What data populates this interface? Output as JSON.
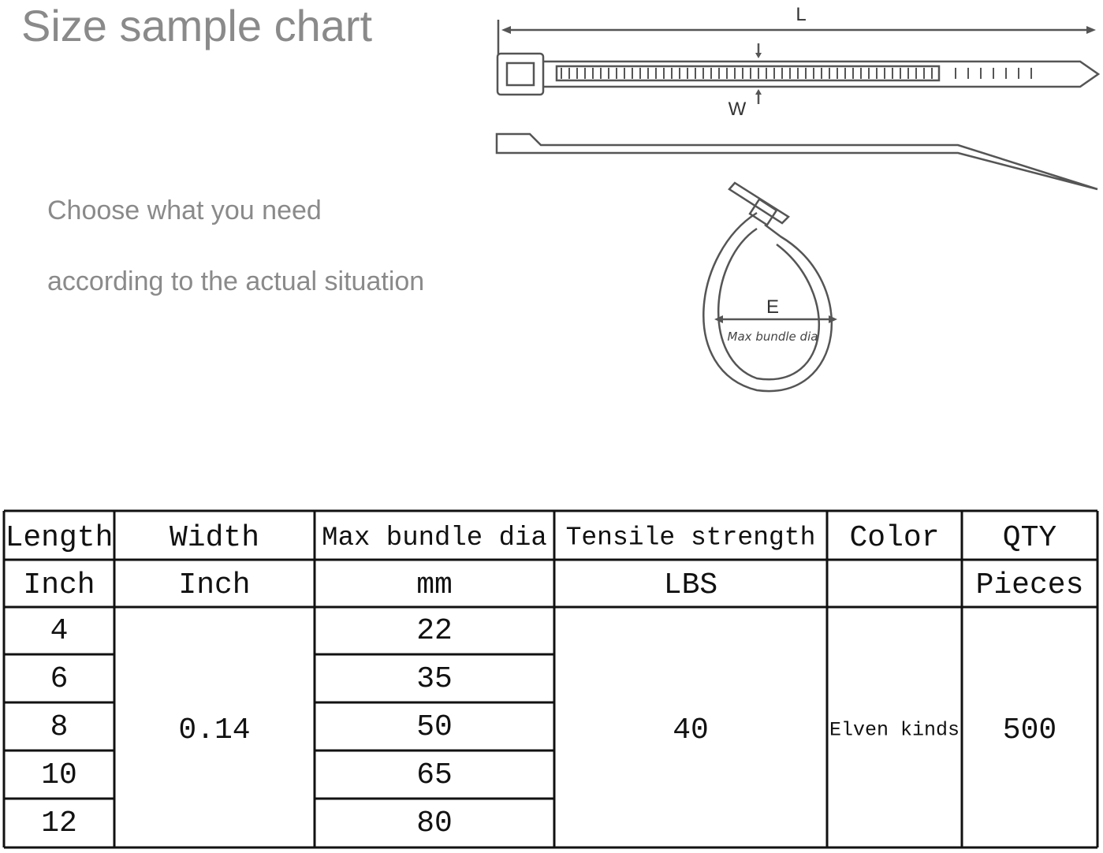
{
  "header": {
    "title": "Size sample chart",
    "lines": [
      "Choose what you need",
      "according to the actual situation"
    ]
  },
  "diagram": {
    "length_label": "L",
    "width_label": "W",
    "bundle_label": "E",
    "bundle_caption": "Max bundle dia"
  },
  "table": {
    "columns": [
      {
        "name": "Length",
        "unit": "Inch"
      },
      {
        "name": "Width",
        "unit": "Inch"
      },
      {
        "name": "Max bundle dia",
        "unit": "mm"
      },
      {
        "name": "Tensile strength",
        "unit": "LBS"
      },
      {
        "name": "Color"
      },
      {
        "name": "QTY",
        "unit": "Pieces"
      }
    ],
    "lengths": [
      4,
      6,
      8,
      10,
      12
    ],
    "width": 0.14,
    "max_bundle_dia": [
      22,
      35,
      50,
      65,
      80
    ],
    "tensile_strength": 40,
    "color": "Elven kinds",
    "qty": 500
  }
}
